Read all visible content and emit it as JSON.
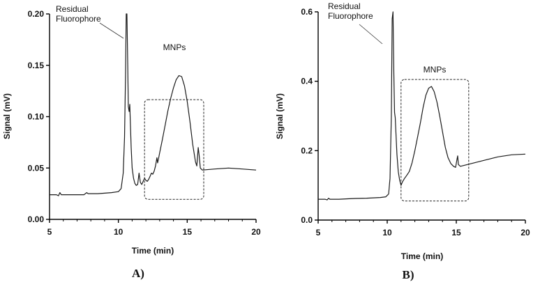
{
  "chart_data": [
    {
      "type": "line",
      "panel_label": "A)",
      "xlabel": "Time (min)",
      "ylabel": "Signal (mV)",
      "xlim": [
        5,
        20
      ],
      "ylim": [
        0,
        0.2
      ],
      "xticks": [
        "5",
        "10",
        "15",
        "20"
      ],
      "yticks": [
        "0.00",
        "0.05",
        "0.10",
        "0.15",
        "0.20"
      ],
      "annotations": [
        {
          "text_lines": [
            "Residual",
            "Fluorophore"
          ],
          "target": [
            10.45,
            0.16
          ]
        },
        {
          "text": "MNPs",
          "box": {
            "x": [
              11.9,
              16.2
            ],
            "y": [
              0.0195,
              0.1165
            ]
          }
        }
      ],
      "series": [
        {
          "points": [
            [
              5.0,
              0.024
            ],
            [
              5.5,
              0.024
            ],
            [
              5.65,
              0.023
            ],
            [
              5.75,
              0.026
            ],
            [
              5.85,
              0.024
            ],
            [
              6.5,
              0.024
            ],
            [
              7.5,
              0.024
            ],
            [
              7.7,
              0.026
            ],
            [
              7.8,
              0.025
            ],
            [
              8.5,
              0.025
            ],
            [
              9.5,
              0.026
            ],
            [
              10.0,
              0.027
            ],
            [
              10.2,
              0.03
            ],
            [
              10.35,
              0.045
            ],
            [
              10.45,
              0.08
            ],
            [
              10.52,
              0.14
            ],
            [
              10.57,
              0.2
            ],
            [
              10.62,
              0.2
            ],
            [
              10.68,
              0.15
            ],
            [
              10.72,
              0.11
            ],
            [
              10.78,
              0.105
            ],
            [
              10.83,
              0.112
            ],
            [
              10.87,
              0.095
            ],
            [
              10.93,
              0.07
            ],
            [
              11.0,
              0.05
            ],
            [
              11.1,
              0.04
            ],
            [
              11.2,
              0.035
            ],
            [
              11.3,
              0.033
            ],
            [
              11.4,
              0.034
            ],
            [
              11.5,
              0.045
            ],
            [
              11.55,
              0.04
            ],
            [
              11.6,
              0.036
            ],
            [
              11.7,
              0.034
            ],
            [
              11.8,
              0.037
            ],
            [
              11.9,
              0.04
            ],
            [
              12.0,
              0.038
            ],
            [
              12.1,
              0.037
            ],
            [
              12.2,
              0.039
            ],
            [
              12.3,
              0.042
            ],
            [
              12.4,
              0.045
            ],
            [
              12.5,
              0.044
            ],
            [
              12.6,
              0.047
            ],
            [
              12.7,
              0.052
            ],
            [
              12.8,
              0.06
            ],
            [
              12.85,
              0.055
            ],
            [
              12.9,
              0.058
            ],
            [
              13.0,
              0.065
            ],
            [
              13.2,
              0.078
            ],
            [
              13.4,
              0.092
            ],
            [
              13.6,
              0.106
            ],
            [
              13.8,
              0.118
            ],
            [
              14.0,
              0.128
            ],
            [
              14.2,
              0.136
            ],
            [
              14.4,
              0.14
            ],
            [
              14.6,
              0.139
            ],
            [
              14.8,
              0.13
            ],
            [
              15.0,
              0.115
            ],
            [
              15.2,
              0.095
            ],
            [
              15.4,
              0.073
            ],
            [
              15.6,
              0.056
            ],
            [
              15.7,
              0.052
            ],
            [
              15.8,
              0.07
            ],
            [
              15.87,
              0.062
            ],
            [
              15.95,
              0.05
            ],
            [
              16.1,
              0.048
            ],
            [
              17.0,
              0.049
            ],
            [
              18.0,
              0.05
            ],
            [
              19.0,
              0.049
            ],
            [
              20.0,
              0.048
            ]
          ]
        }
      ]
    },
    {
      "type": "line",
      "panel_label": "B)",
      "xlabel": "Time (min)",
      "ylabel": "Signal (mV)",
      "xlim": [
        5,
        20
      ],
      "ylim": [
        0,
        0.6
      ],
      "xticks": [
        "5",
        "10",
        "15",
        "20"
      ],
      "yticks": [
        "0.0",
        "0.2",
        "0.4",
        "0.6"
      ],
      "annotations": [
        {
          "text_lines": [
            "Residual",
            "Fluorophore"
          ],
          "target": [
            9.75,
            0.51
          ]
        },
        {
          "text": "MNPs",
          "box": {
            "x": [
              11.0,
              15.9
            ],
            "y": [
              0.055,
              0.405
            ]
          }
        }
      ],
      "series": [
        {
          "points": [
            [
              5.0,
              0.06
            ],
            [
              5.5,
              0.06
            ],
            [
              5.65,
              0.058
            ],
            [
              5.75,
              0.063
            ],
            [
              5.85,
              0.06
            ],
            [
              6.5,
              0.06
            ],
            [
              7.5,
              0.062
            ],
            [
              8.5,
              0.063
            ],
            [
              9.5,
              0.065
            ],
            [
              9.9,
              0.067
            ],
            [
              10.1,
              0.075
            ],
            [
              10.2,
              0.12
            ],
            [
              10.3,
              0.3
            ],
            [
              10.36,
              0.58
            ],
            [
              10.42,
              0.6
            ],
            [
              10.48,
              0.42
            ],
            [
              10.53,
              0.31
            ],
            [
              10.58,
              0.295
            ],
            [
              10.63,
              0.25
            ],
            [
              10.7,
              0.19
            ],
            [
              10.8,
              0.14
            ],
            [
              10.9,
              0.115
            ],
            [
              11.0,
              0.1
            ],
            [
              11.1,
              0.11
            ],
            [
              11.25,
              0.12
            ],
            [
              11.4,
              0.128
            ],
            [
              11.6,
              0.14
            ],
            [
              11.8,
              0.165
            ],
            [
              12.0,
              0.2
            ],
            [
              12.2,
              0.24
            ],
            [
              12.4,
              0.28
            ],
            [
              12.6,
              0.325
            ],
            [
              12.8,
              0.36
            ],
            [
              13.0,
              0.38
            ],
            [
              13.2,
              0.385
            ],
            [
              13.4,
              0.37
            ],
            [
              13.6,
              0.34
            ],
            [
              13.8,
              0.3
            ],
            [
              14.0,
              0.255
            ],
            [
              14.2,
              0.21
            ],
            [
              14.4,
              0.18
            ],
            [
              14.6,
              0.163
            ],
            [
              14.8,
              0.155
            ],
            [
              14.95,
              0.152
            ],
            [
              15.05,
              0.175
            ],
            [
              15.1,
              0.185
            ],
            [
              15.15,
              0.16
            ],
            [
              15.3,
              0.155
            ],
            [
              16.0,
              0.162
            ],
            [
              17.0,
              0.172
            ],
            [
              18.0,
              0.182
            ],
            [
              19.0,
              0.188
            ],
            [
              20.0,
              0.19
            ]
          ]
        }
      ]
    }
  ]
}
